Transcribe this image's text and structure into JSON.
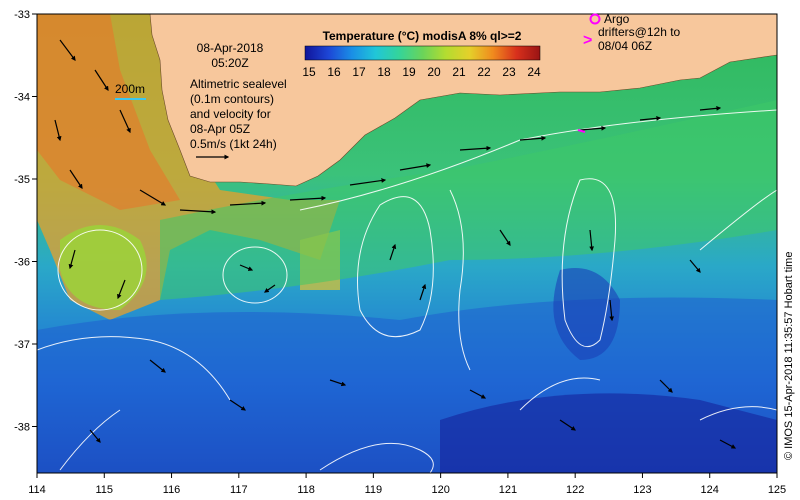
{
  "header": {
    "date": "08-Apr-2018",
    "time": "05:20Z"
  },
  "colorbar": {
    "title": "Temperature (°C) modisA 8% ql>=2",
    "ticks": [
      "15",
      "16",
      "17",
      "18",
      "19",
      "20",
      "21",
      "22",
      "23",
      "24"
    ],
    "colors": [
      "#10149a",
      "#1d46d6",
      "#1a8fe6",
      "#20c6d8",
      "#34d49a",
      "#6ad45a",
      "#b4dc30",
      "#e4d02a",
      "#f08a1e",
      "#d8301c",
      "#9a1414"
    ]
  },
  "scale_label": "200m",
  "legend_text": {
    "line1": "Altimetric sealevel",
    "line2": "(0.1m contours)",
    "line3": "and velocity for",
    "line4": "08-Apr 05Z",
    "line5": "0.5m/s (1kt 24h)"
  },
  "argo": {
    "label": "Argo",
    "drifters_line1": "drifters@12h to",
    "drifters_line2": "08/04 06Z"
  },
  "axes": {
    "x_ticks": [
      "114",
      "115",
      "116",
      "117",
      "118",
      "119",
      "120",
      "121",
      "122",
      "123",
      "124",
      "125"
    ],
    "y_ticks": [
      "-33",
      "-34",
      "-35",
      "-36",
      "-37",
      "-38"
    ]
  },
  "credit": "© IMOS 15-Apr-2018 11:35:57 Hobart time",
  "colors": {
    "land": "#f7c79c",
    "frame": "#000000",
    "argo_marker": "#ff00ff",
    "scale_line": "#3cc7ee"
  }
}
